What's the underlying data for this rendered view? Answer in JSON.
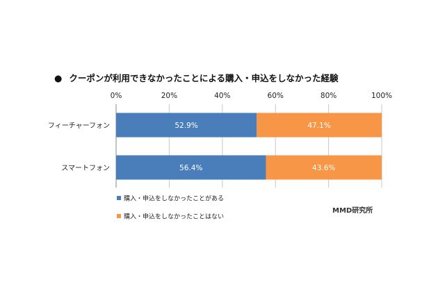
{
  "title": "クーポンが利用できなかったことによる購入・申込をしなかった経験",
  "title_bullet": "●",
  "source": "MMD研究所",
  "chart_data": {
    "type": "bar",
    "orientation": "horizontal",
    "stacked": true,
    "title": "クーポンが利用できなかったことによる購入・申込をしなかった経験",
    "categories": [
      "フィーチャーフォン",
      "スマートフォン"
    ],
    "series": [
      {
        "name": "購入・申込をしなかったことがある",
        "values": [
          52.9,
          56.4
        ],
        "labels": [
          "52.9%",
          "56.4%"
        ],
        "color": "#4a7ebb"
      },
      {
        "name": "購入・申込をしなかったことはない",
        "values": [
          47.1,
          43.6
        ],
        "labels": [
          "47.1%",
          "43.6%"
        ],
        "color": "#f79646"
      }
    ],
    "xlim": [
      0,
      100
    ],
    "ticks": [
      "0%",
      "20%",
      "40%",
      "60%",
      "80%",
      "100%"
    ],
    "grid": true,
    "legend_position": "bottom-left"
  }
}
